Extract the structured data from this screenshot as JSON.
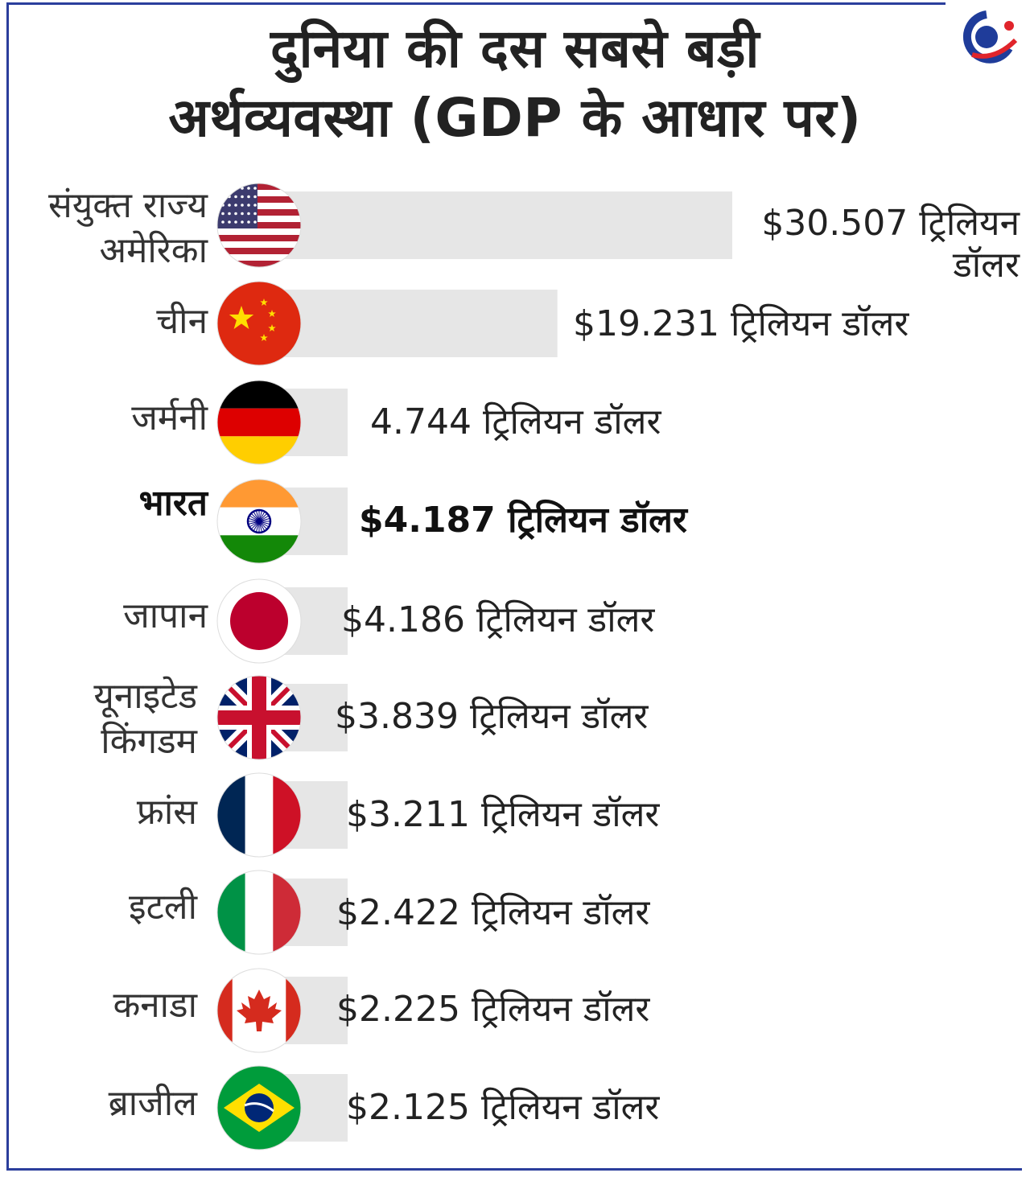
{
  "title_line1": "दुनिया की दस सबसे बड़ी",
  "title_line2": "अर्थव्यवस्था (GDP के आधार पर)",
  "colors": {
    "bar": "#e6e6e6",
    "frame": "#2b3e9c",
    "text": "#222222"
  },
  "chart_data": {
    "type": "bar",
    "orientation": "horizontal",
    "categories": [
      "संयुक्त राज्य अमेरिका",
      "चीन",
      "जर्मनी",
      "भारत",
      "जापान",
      "यूनाइटेड किंगडम",
      "फ्रांस",
      "इटली",
      "कनाडा",
      "ब्राजील"
    ],
    "values": [
      30.507,
      19.231,
      4.744,
      4.187,
      4.186,
      3.839,
      3.211,
      2.422,
      2.225,
      2.125
    ],
    "value_labels": [
      "$30.507 ट्रिलियन डॉलर",
      "$19.231 ट्रिलियन डॉलर",
      "4.744 ट्रिलियन डॉलर",
      "$4.187 ट्रिलियन डॉलर",
      "$4.186 ट्रिलियन डॉलर",
      "$3.839 ट्रिलियन डॉलर",
      "$3.211 ट्रिलियन डॉलर",
      "$2.422 ट्रिलियन डॉलर",
      "$2.225 ट्रिलियन डॉलर",
      "$2.125 ट्रिलियन डॉलर"
    ],
    "flags": [
      "usa-flag-icon",
      "china-flag-icon",
      "germany-flag-icon",
      "india-flag-icon",
      "japan-flag-icon",
      "uk-flag-icon",
      "france-flag-icon",
      "italy-flag-icon",
      "canada-flag-icon",
      "brazil-flag-icon"
    ],
    "highlight": "भारत"
  }
}
